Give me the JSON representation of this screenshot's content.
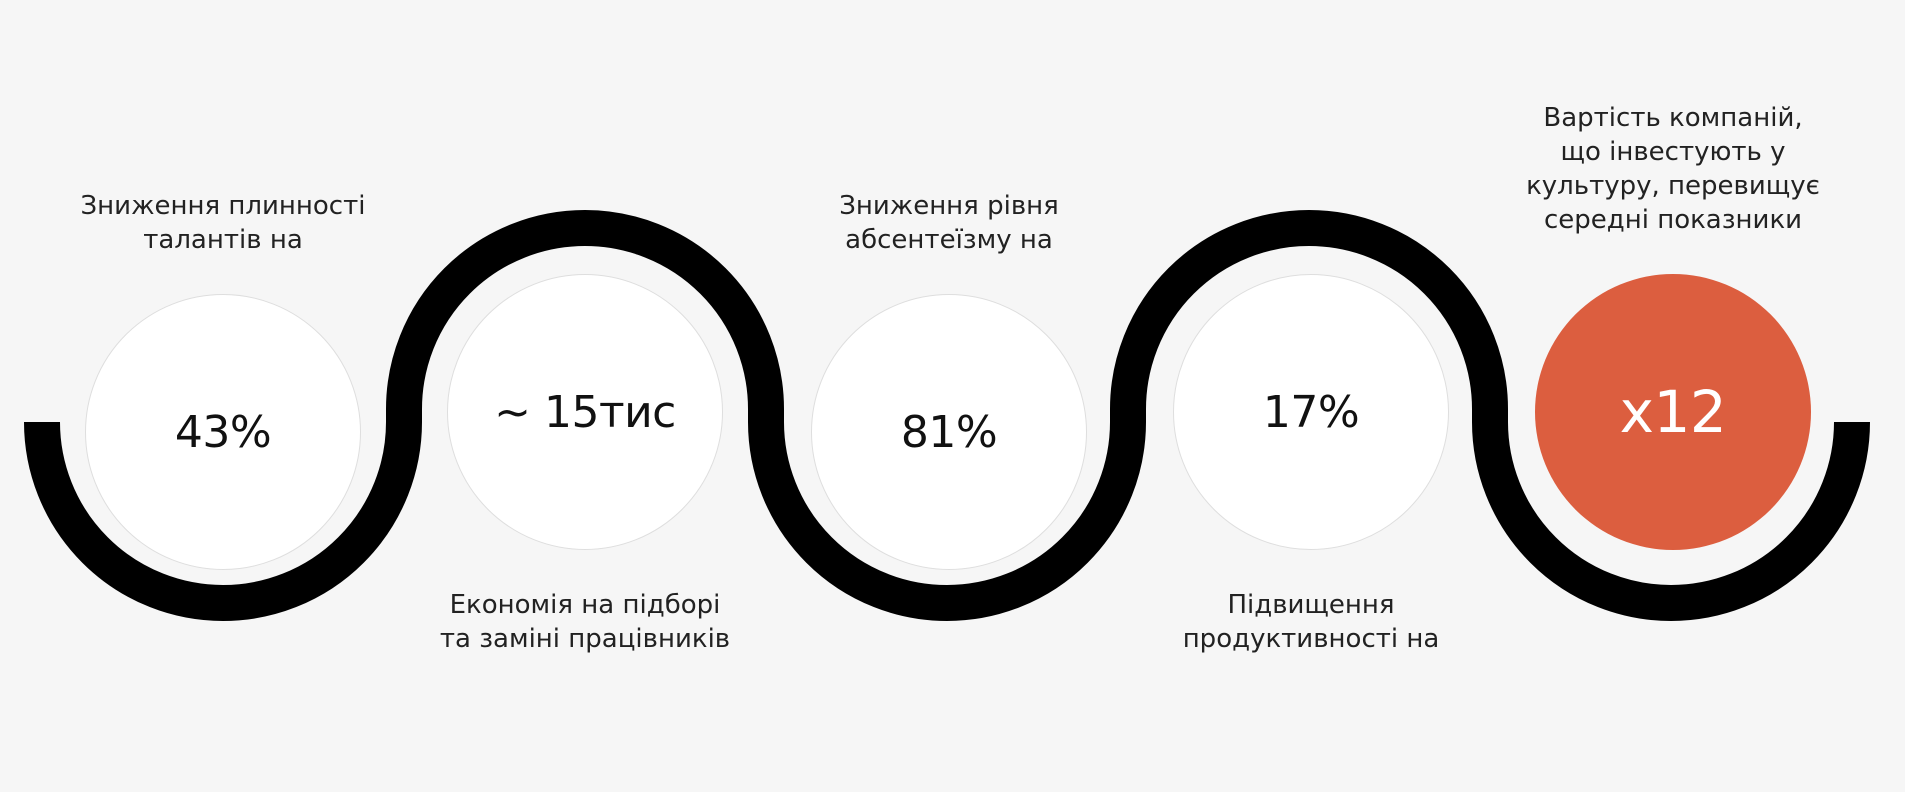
{
  "colors": {
    "background": "#f6f6f6",
    "wave": "#000000",
    "accent": "#dc5e3f",
    "circle": "#ffffff"
  },
  "stats": [
    {
      "value": "43%",
      "caption": "Зниження плинності\nталантів на"
    },
    {
      "value": "~ 15тис",
      "caption": "Економія на підборі\nта заміні працівників"
    },
    {
      "value": "81%",
      "caption": "Зниження рівня\nабсентеїзму на"
    },
    {
      "value": "17%",
      "caption": "Підвищення\nпродуктивності на"
    },
    {
      "value": "x12",
      "caption": "Вартість компаній,\nщо інвестують у\nкультуру, перевищує\nсередні показники"
    }
  ]
}
